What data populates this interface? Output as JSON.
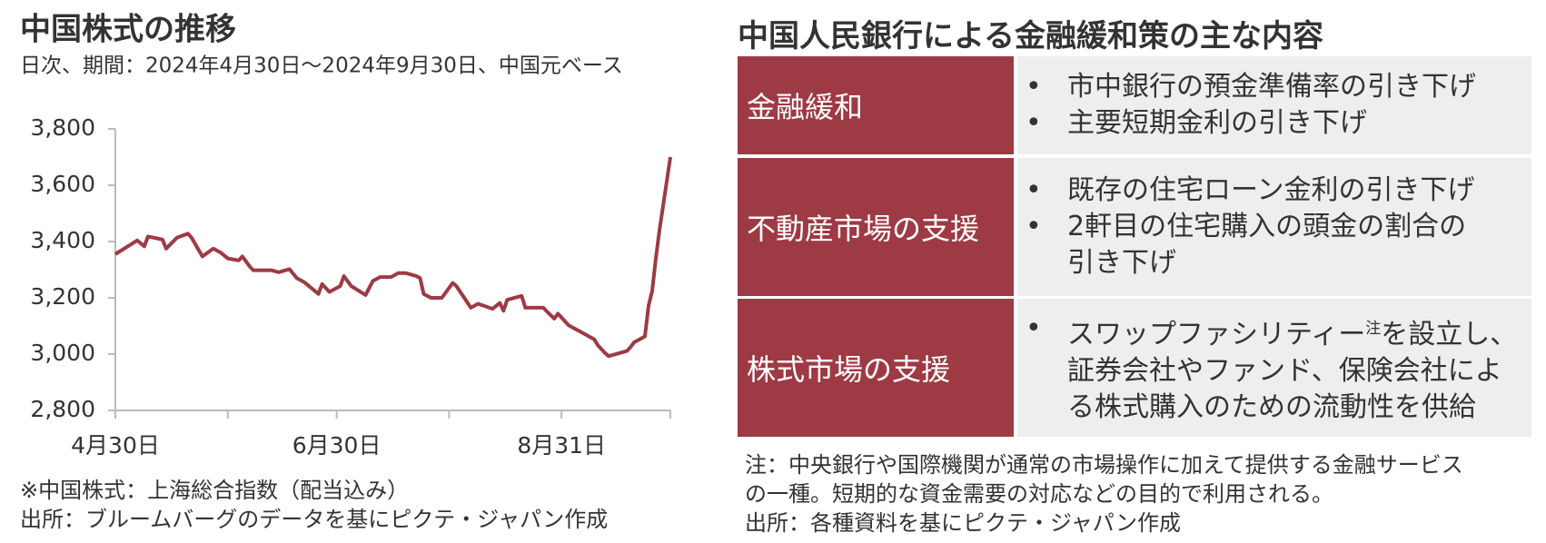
{
  "chart_data": {
    "type": "line",
    "title": "中国株式の推移",
    "subtitle": "日次、期間：2024年4月30日～2024年9月30日、中国元ベース",
    "x": [
      "2024-04-30",
      "2024-05-06",
      "2024-05-08",
      "2024-05-09",
      "2024-05-13",
      "2024-05-14",
      "2024-05-17",
      "2024-05-20",
      "2024-05-21",
      "2024-05-24",
      "2024-05-27",
      "2024-05-29",
      "2024-05-31",
      "2024-06-03",
      "2024-06-04",
      "2024-06-06",
      "2024-06-07",
      "2024-06-12",
      "2024-06-14",
      "2024-06-17",
      "2024-06-19",
      "2024-06-21",
      "2024-06-25",
      "2024-06-26",
      "2024-06-28",
      "2024-07-01",
      "2024-07-02",
      "2024-07-04",
      "2024-07-08",
      "2024-07-09",
      "2024-07-10",
      "2024-07-12",
      "2024-07-15",
      "2024-07-17",
      "2024-07-19",
      "2024-07-22",
      "2024-07-23",
      "2024-07-24",
      "2024-07-26",
      "2024-07-29",
      "2024-08-01",
      "2024-08-02",
      "2024-08-06",
      "2024-08-08",
      "2024-08-12",
      "2024-08-14",
      "2024-08-15",
      "2024-08-16",
      "2024-08-20",
      "2024-08-21",
      "2024-08-26",
      "2024-08-27",
      "2024-08-29",
      "2024-08-30",
      "2024-09-02",
      "2024-09-05",
      "2024-09-09",
      "2024-09-10",
      "2024-09-12",
      "2024-09-13",
      "2024-09-18",
      "2024-09-19",
      "2024-09-20",
      "2024-09-23",
      "2024-09-24",
      "2024-09-25",
      "2024-09-26",
      "2024-09-27",
      "2024-09-30"
    ],
    "values": [
      3355,
      3404,
      3383,
      3418,
      3407,
      3375,
      3414,
      3428,
      3414,
      3347,
      3375,
      3361,
      3340,
      3333,
      3347,
      3312,
      3298,
      3298,
      3291,
      3302,
      3270,
      3256,
      3214,
      3249,
      3221,
      3242,
      3277,
      3242,
      3210,
      3235,
      3260,
      3274,
      3274,
      3288,
      3288,
      3277,
      3270,
      3214,
      3200,
      3200,
      3253,
      3242,
      3165,
      3179,
      3161,
      3182,
      3154,
      3193,
      3207,
      3165,
      3165,
      3151,
      3126,
      3144,
      3102,
      3081,
      3053,
      3032,
      3004,
      2993,
      3011,
      3025,
      3042,
      3063,
      3172,
      3225,
      3340,
      3440,
      3700
    ],
    "color": "#9e3a44",
    "xlim": [
      "2024-04-30",
      "2024-09-30"
    ],
    "xticks": [
      {
        "value": "2024-04-30",
        "label": "4月30日"
      },
      {
        "value": "2024-06-30",
        "label": "6月30日"
      },
      {
        "value": "2024-08-31",
        "label": "8月31日"
      }
    ],
    "xminorticks": [
      "2024-05-31",
      "2024-07-31",
      "2024-09-30"
    ],
    "ylim": [
      2800,
      3800
    ],
    "yticks": [
      {
        "value": 2800,
        "label": "2,800"
      },
      {
        "value": 3000,
        "label": "3,000"
      },
      {
        "value": 3200,
        "label": "3,200"
      },
      {
        "value": 3400,
        "label": "3,400"
      },
      {
        "value": 3600,
        "label": "3,600"
      },
      {
        "value": 3800,
        "label": "3,800"
      }
    ],
    "notes": [
      "※中国株式：上海総合指数（配当込み）",
      "出所：ブルームバーグのデータを基にピクテ・ジャパン作成"
    ]
  },
  "table": {
    "title": "中国人民銀行による金融緩和策の主な内容",
    "rows": [
      {
        "label": "金融緩和",
        "items": [
          {
            "lines": [
              [
                "市中銀行の預金準備率の引き下げ"
              ]
            ]
          },
          {
            "lines": [
              [
                "主要短期金利の引き下げ"
              ]
            ]
          }
        ]
      },
      {
        "label": "不動産市場の支援",
        "items": [
          {
            "lines": [
              [
                "既存の住宅ローン金利の引き下げ"
              ]
            ]
          },
          {
            "lines": [
              [
                "2軒目の住宅購入の頭金の割合の"
              ],
              [
                "引き下げ"
              ]
            ]
          }
        ]
      },
      {
        "label": "株式市場の支援",
        "items": [
          {
            "lines": [
              [
                "スワップファシリティー",
                {
                  "sup": "注"
                },
                "を設立し、"
              ],
              [
                "証券会社やファンド、保険会社によ"
              ],
              [
                "る株式購入のための流動性を供給"
              ]
            ]
          }
        ]
      }
    ],
    "notes": [
      "注：中央銀行や国際機関が通常の市場操作に加えて提供する金融サービス",
      "の一種。短期的な資金需要の対応などの目的で利用される。",
      "出所：各種資料を基にピクテ・ジャパン作成"
    ]
  }
}
